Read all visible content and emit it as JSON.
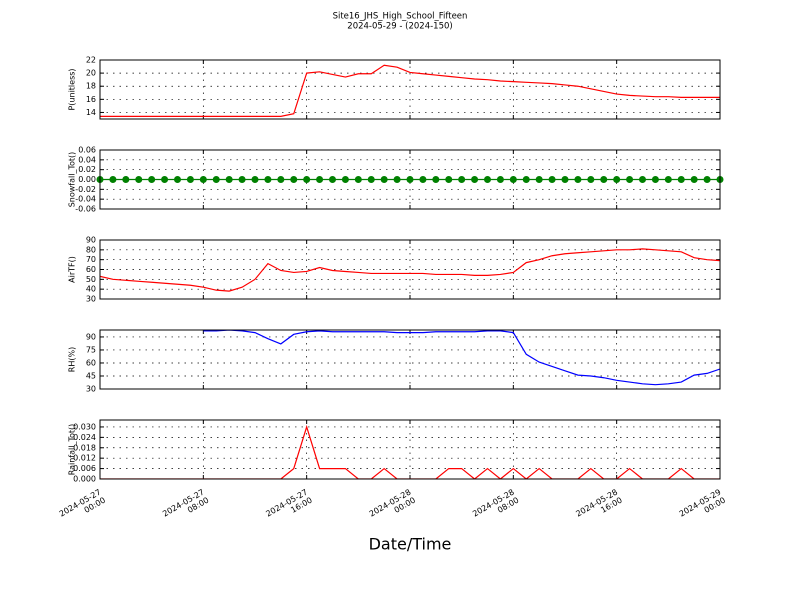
{
  "title": "Site16_JHS_High_School_Fifteen",
  "subtitle": "2024-05-29 - (2024-150)",
  "xlabel": "Date/Time",
  "x": [
    "2024-05-27 00:00",
    "2024-05-27 01:00",
    "2024-05-27 02:00",
    "2024-05-27 03:00",
    "2024-05-27 04:00",
    "2024-05-27 05:00",
    "2024-05-27 06:00",
    "2024-05-27 07:00",
    "2024-05-27 08:00",
    "2024-05-27 09:00",
    "2024-05-27 10:00",
    "2024-05-27 11:00",
    "2024-05-27 12:00",
    "2024-05-27 13:00",
    "2024-05-27 14:00",
    "2024-05-27 15:00",
    "2024-05-27 16:00",
    "2024-05-27 17:00",
    "2024-05-27 18:00",
    "2024-05-27 19:00",
    "2024-05-27 20:00",
    "2024-05-27 21:00",
    "2024-05-27 22:00",
    "2024-05-27 23:00",
    "2024-05-28 00:00",
    "2024-05-28 01:00",
    "2024-05-28 02:00",
    "2024-05-28 03:00",
    "2024-05-28 04:00",
    "2024-05-28 05:00",
    "2024-05-28 06:00",
    "2024-05-28 07:00",
    "2024-05-28 08:00",
    "2024-05-28 09:00",
    "2024-05-28 10:00",
    "2024-05-28 11:00",
    "2024-05-28 12:00",
    "2024-05-28 13:00",
    "2024-05-28 14:00",
    "2024-05-28 15:00",
    "2024-05-28 16:00",
    "2024-05-28 17:00",
    "2024-05-28 18:00",
    "2024-05-28 19:00",
    "2024-05-28 20:00",
    "2024-05-28 21:00",
    "2024-05-28 22:00",
    "2024-05-28 23:00",
    "2024-05-29 00:00"
  ],
  "xlim": [
    "2024-05-27 00:00",
    "2024-05-29 00:00"
  ],
  "xticks": [
    {
      "value": "2024-05-27 00:00",
      "label": "2024-05-27 00:00"
    },
    {
      "value": "2024-05-27 08:00",
      "label": "2024-05-27 08:00"
    },
    {
      "value": "2024-05-27 16:00",
      "label": "2024-05-27 16:00"
    },
    {
      "value": "2024-05-28 00:00",
      "label": "2024-05-28 00:00"
    },
    {
      "value": "2024-05-28 08:00",
      "label": "2024-05-28 08:00"
    },
    {
      "value": "2024-05-28 16:00",
      "label": "2024-05-28 16:00"
    },
    {
      "value": "2024-05-29 00:00",
      "label": "2024-05-29 00:00"
    }
  ],
  "grid": true,
  "chart_data": [
    {
      "type": "line",
      "ylabel": "P(unitless)",
      "ylim": [
        13,
        22
      ],
      "yticks": [
        14,
        16,
        18,
        20,
        22
      ],
      "series": [
        {
          "color": "#ff0000",
          "values": [
            13.4,
            13.4,
            13.4,
            13.4,
            13.4,
            13.4,
            13.4,
            13.4,
            13.4,
            13.4,
            13.4,
            13.4,
            13.4,
            13.4,
            13.4,
            13.8,
            20.0,
            20.2,
            19.8,
            19.4,
            19.9,
            19.9,
            21.2,
            20.9,
            20.1,
            19.9,
            19.7,
            19.5,
            19.3,
            19.1,
            19.0,
            18.8,
            18.7,
            18.6,
            18.5,
            18.4,
            18.2,
            18.0,
            17.6,
            17.2,
            16.8,
            16.6,
            16.5,
            16.4,
            16.4,
            16.3,
            16.3,
            16.3,
            16.3
          ]
        }
      ]
    },
    {
      "type": "line",
      "marker": true,
      "ylabel": "Snowfall_Tot()",
      "ylim": [
        -0.06,
        0.06
      ],
      "yticks": [
        -0.06,
        -0.04,
        -0.02,
        {
          "value": 0,
          "label": "0.00"
        },
        0.02,
        0.04,
        0.06
      ],
      "series": [
        {
          "color": "#008000",
          "values": [
            0,
            0,
            0,
            0,
            0,
            0,
            0,
            0,
            0,
            0,
            0,
            0,
            0,
            0,
            0,
            0,
            0,
            0,
            0,
            0,
            0,
            0,
            0,
            0,
            0,
            0,
            0,
            0,
            0,
            0,
            0,
            0,
            0,
            0,
            0,
            0,
            0,
            0,
            0,
            0,
            0,
            0,
            0,
            0,
            0,
            0,
            0,
            0,
            0
          ]
        }
      ]
    },
    {
      "type": "line",
      "ylabel": "AirTF()",
      "ylim": [
        30,
        90
      ],
      "yticks": [
        30,
        40,
        50,
        60,
        70,
        80,
        90
      ],
      "series": [
        {
          "color": "#ff0000",
          "values": [
            53,
            50,
            49,
            48,
            47,
            46,
            45,
            44,
            42,
            39,
            38,
            42,
            50,
            66,
            59,
            57,
            58,
            62,
            59,
            58,
            57,
            56,
            56,
            56,
            56,
            56,
            55,
            55,
            55,
            54,
            54,
            55,
            57,
            67,
            70,
            74,
            76,
            77,
            78,
            79,
            80,
            80,
            81,
            80,
            79,
            78,
            72,
            70,
            69
          ]
        }
      ]
    },
    {
      "type": "line",
      "ylabel": "RH(%)",
      "ylim": [
        30,
        98
      ],
      "yticks": [
        30,
        45,
        60,
        75,
        90
      ],
      "series": [
        {
          "color": "#0000ff",
          "values": [
            null,
            null,
            null,
            null,
            null,
            null,
            null,
            null,
            97,
            97,
            98,
            97,
            95,
            88,
            82,
            93,
            96,
            97,
            96,
            96,
            96,
            96,
            96,
            95,
            95,
            95,
            96,
            96,
            96,
            96,
            97,
            97,
            95,
            70,
            61,
            56,
            51,
            46,
            45,
            43,
            40,
            38,
            36,
            35,
            36,
            38,
            46,
            48,
            53
          ]
        }
      ]
    },
    {
      "type": "line",
      "ylabel": "Rainfall_Tot()",
      "ylim": [
        0,
        0.034
      ],
      "yticks": [
        {
          "value": 0,
          "label": "0.000"
        },
        {
          "value": 0.006,
          "label": "0.006"
        },
        {
          "value": 0.012,
          "label": "0.012"
        },
        {
          "value": 0.018,
          "label": "0.018"
        },
        {
          "value": 0.024,
          "label": "0.024"
        },
        {
          "value": 0.03,
          "label": "0.030"
        }
      ],
      "series": [
        {
          "color": "#ff0000",
          "values": [
            0,
            0,
            0,
            0,
            0,
            0,
            0,
            0,
            0,
            0,
            0,
            0,
            0,
            0,
            0,
            0.006,
            0.03,
            0.006,
            0.006,
            0.006,
            0,
            0,
            0.006,
            0,
            0,
            0,
            0,
            0.006,
            0.006,
            0,
            0.006,
            0,
            0.006,
            0,
            0.006,
            0,
            0,
            0,
            0.006,
            0,
            0,
            0.006,
            0,
            0,
            0,
            0.006,
            0,
            0,
            0
          ]
        }
      ]
    }
  ]
}
